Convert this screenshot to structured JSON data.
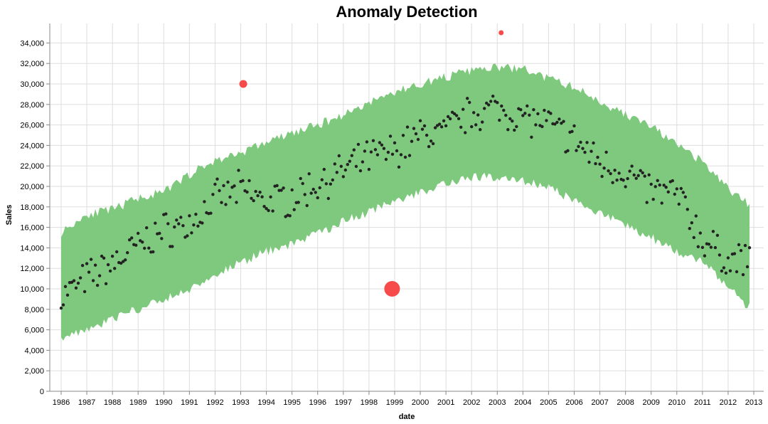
{
  "chart_data": {
    "type": "scatter",
    "title": "Anomaly Detection",
    "xlabel": "date",
    "ylabel": "Sales",
    "x_ticks": [
      "1986",
      "1987",
      "1988",
      "1989",
      "1990",
      "1991",
      "1992",
      "1993",
      "1994",
      "1995",
      "1996",
      "1997",
      "1998",
      "1999",
      "2000",
      "2001",
      "2002",
      "2003",
      "2004",
      "2005",
      "2006",
      "2007",
      "2008",
      "2009",
      "2010",
      "2011",
      "2012",
      "2013"
    ],
    "y_ticks": [
      "0",
      "2,000",
      "4,000",
      "6,000",
      "8,000",
      "10,000",
      "12,000",
      "14,000",
      "16,000",
      "18,000",
      "20,000",
      "22,000",
      "24,000",
      "26,000",
      "28,000",
      "30,000",
      "32,000",
      "34,000"
    ],
    "xlim": [
      1986,
      2013
    ],
    "ylim": [
      0,
      35000
    ],
    "grid": true,
    "colors": {
      "band": "#7fc97f",
      "points": "#222222",
      "anomaly": "#f74040"
    },
    "band_seed": 11,
    "sales_seed": 7,
    "band": {
      "x": [
        1986,
        1987,
        1988,
        1989,
        1990,
        1991,
        1992,
        1993,
        1994,
        1995,
        1996,
        1997,
        1998,
        1999,
        2000,
        2001,
        2002,
        2003,
        2004,
        2005,
        2006,
        2007,
        2008,
        2009,
        2010,
        2011,
        2012,
        2012.8
      ],
      "lower": [
        5300,
        6000,
        7100,
        8000,
        8900,
        10000,
        11300,
        12600,
        13600,
        14400,
        15400,
        16600,
        17500,
        18500,
        19400,
        20400,
        20900,
        20900,
        20600,
        19900,
        18600,
        17400,
        16200,
        15000,
        13700,
        12600,
        10200,
        8200
      ],
      "upper": [
        15500,
        17300,
        17700,
        18900,
        19400,
        21200,
        22500,
        23300,
        24300,
        25200,
        26000,
        27000,
        28200,
        29200,
        30000,
        30700,
        31300,
        31600,
        31500,
        30500,
        29700,
        28300,
        27000,
        25900,
        24000,
        22400,
        19800,
        18200
      ]
    },
    "series": {
      "x": [
        1986,
        1987,
        1988,
        1989,
        1990,
        1991,
        1992,
        1993,
        1994,
        1995,
        1996,
        1997,
        1998,
        1999,
        2000,
        2001,
        2002,
        2003,
        2004,
        2005,
        2006,
        2007,
        2008,
        2009,
        2010,
        2011,
        2012,
        2012.8
      ],
      "values": [
        9200,
        11000,
        12400,
        14200,
        15700,
        16300,
        18700,
        19700,
        18500,
        18900,
        20300,
        21500,
        22800,
        23500,
        25000,
        25400,
        27200,
        27600,
        26800,
        26000,
        24500,
        22300,
        21400,
        19500,
        19300,
        14800,
        12800,
        12800
      ]
    },
    "anomalies": [
      {
        "x": 1993.1,
        "y": 30000,
        "size": "medium"
      },
      {
        "x": 1998.9,
        "y": 10000,
        "size": "large"
      },
      {
        "x": 2003.15,
        "y": 35000,
        "size": "small"
      }
    ]
  }
}
